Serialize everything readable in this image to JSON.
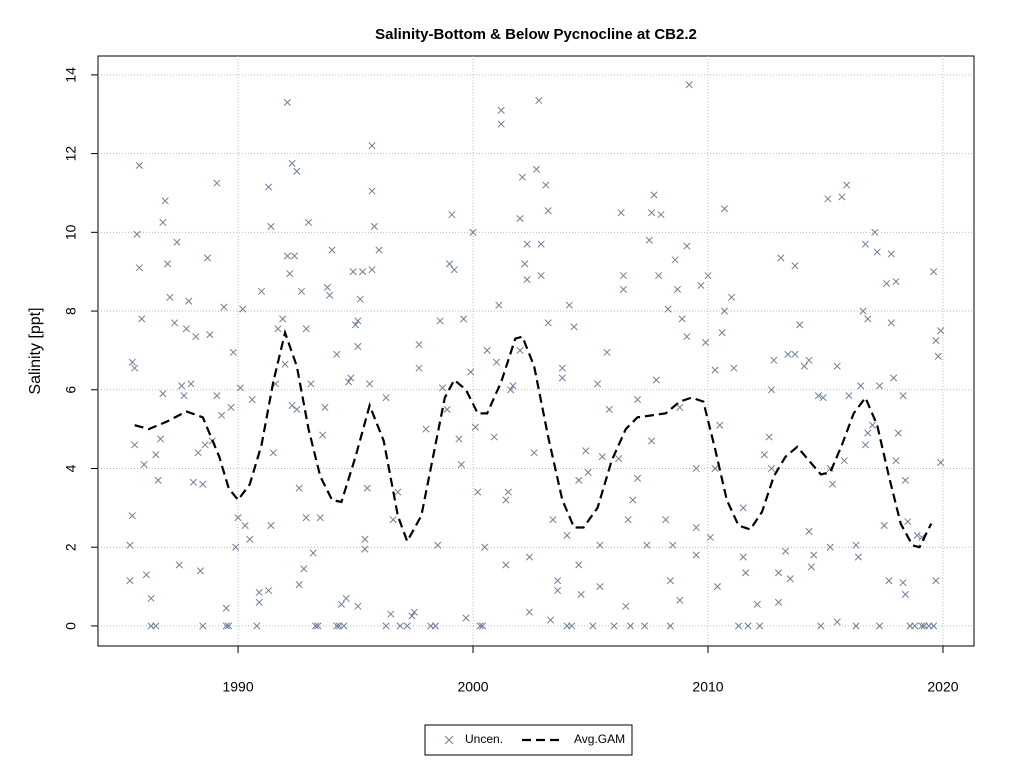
{
  "chart_data": {
    "type": "scatter",
    "title": "Salinity-Bottom & Below Pycnocline at CB2.2",
    "y_label": "Salinity [ppt]",
    "xlim": [
      1984.04,
      2021.32
    ],
    "xticks": [
      1990,
      2000,
      2010,
      2020
    ],
    "ylim": [
      -0.51,
      14.48
    ],
    "yticks": [
      0,
      2,
      4,
      6,
      8,
      10,
      12,
      14
    ],
    "grid": true,
    "legend_position": "bottom",
    "series": [
      {
        "name": "Uncen.",
        "color": "#6e7f99",
        "marker": "x",
        "x": [
          1985.4,
          1985.4,
          1985.5,
          1985.5,
          1985.6,
          1985.6,
          1985.7,
          1985.8,
          1985.8,
          1985.9,
          1986.0,
          1986.1,
          1986.3,
          1986.3,
          1986.5,
          1986.5,
          1986.6,
          1986.7,
          1986.8,
          1986.8,
          1986.9,
          1987.0,
          1987.1,
          1987.3,
          1987.4,
          1987.5,
          1987.6,
          1987.7,
          1987.8,
          1987.9,
          1988.0,
          1988.1,
          1988.2,
          1988.3,
          1988.4,
          1988.5,
          1988.5,
          1988.6,
          1988.7,
          1988.8,
          1988.9,
          1989.1,
          1989.1,
          1989.3,
          1989.4,
          1989.5,
          1989.5,
          1989.6,
          1989.7,
          1989.8,
          1989.9,
          1990.0,
          1990.1,
          1990.2,
          1990.3,
          1990.5,
          1990.6,
          1990.8,
          1990.9,
          1990.9,
          1991.0,
          1991.3,
          1991.3,
          1991.4,
          1991.4,
          1991.5,
          1991.6,
          1991.7,
          1991.9,
          1992.0,
          1992.1,
          1992.1,
          1992.2,
          1992.3,
          1992.3,
          1992.4,
          1992.5,
          1992.5,
          1992.6,
          1992.6,
          1992.7,
          1992.8,
          1992.9,
          1992.9,
          1993.0,
          1993.1,
          1993.2,
          1993.3,
          1993.4,
          1993.5,
          1993.6,
          1993.7,
          1993.8,
          1993.9,
          1994.0,
          1994.2,
          1994.2,
          1994.3,
          1994.4,
          1994.5,
          1994.6,
          1994.7,
          1994.8,
          1994.9,
          1995.0,
          1995.1,
          1995.1,
          1995.1,
          1995.2,
          1995.3,
          1995.4,
          1995.4,
          1995.5,
          1995.6,
          1995.7,
          1995.7,
          1995.7,
          1995.8,
          1996.0,
          1996.3,
          1996.3,
          1996.5,
          1996.6,
          1996.8,
          1996.9,
          1997.2,
          1997.4,
          1997.5,
          1997.7,
          1997.7,
          1998.0,
          1998.2,
          1998.4,
          1998.5,
          1998.6,
          1998.7,
          1998.9,
          1999.0,
          1999.1,
          1999.2,
          1999.4,
          1999.5,
          1999.6,
          1999.7,
          1999.9,
          2000.0,
          2000.1,
          2000.2,
          2000.3,
          2000.4,
          2000.5,
          2000.6,
          2000.9,
          2001.0,
          2001.1,
          2001.2,
          2001.2,
          2001.4,
          2001.4,
          2001.5,
          2001.6,
          2001.7,
          2002.0,
          2002.0,
          2002.1,
          2002.2,
          2002.3,
          2002.3,
          2002.4,
          2002.4,
          2002.6,
          2002.7,
          2002.8,
          2002.9,
          2002.9,
          2003.1,
          2003.2,
          2003.2,
          2003.3,
          2003.4,
          2003.6,
          2003.6,
          2003.8,
          2003.8,
          2004.0,
          2004.0,
          2004.1,
          2004.2,
          2004.3,
          2004.5,
          2004.5,
          2004.6,
          2004.8,
          2004.9,
          2005.1,
          2005.3,
          2005.4,
          2005.4,
          2005.5,
          2005.7,
          2005.8,
          2006.0,
          2006.2,
          2006.3,
          2006.4,
          2006.4,
          2006.5,
          2006.6,
          2006.7,
          2006.8,
          2007.0,
          2007.0,
          2007.3,
          2007.4,
          2007.5,
          2007.6,
          2007.6,
          2007.7,
          2007.8,
          2007.9,
          2008.0,
          2008.2,
          2008.3,
          2008.4,
          2008.4,
          2008.5,
          2008.6,
          2008.7,
          2008.8,
          2008.8,
          2008.9,
          2009.1,
          2009.1,
          2009.2,
          2009.5,
          2009.5,
          2009.5,
          2009.7,
          2009.9,
          2010.0,
          2010.1,
          2010.3,
          2010.3,
          2010.4,
          2010.5,
          2010.6,
          2010.7,
          2010.7,
          2011.0,
          2011.1,
          2011.3,
          2011.5,
          2011.5,
          2011.6,
          2011.7,
          2012.1,
          2012.2,
          2012.4,
          2012.6,
          2012.7,
          2012.7,
          2012.8,
          2013.0,
          2013.0,
          2013.1,
          2013.3,
          2013.4,
          2013.5,
          2013.7,
          2013.7,
          2013.9,
          2014.1,
          2014.3,
          2014.3,
          2014.4,
          2014.5,
          2014.7,
          2014.8,
          2014.9,
          2015.1,
          2015.2,
          2015.2,
          2015.3,
          2015.5,
          2015.5,
          2015.7,
          2015.8,
          2015.9,
          2016.0,
          2016.3,
          2016.3,
          2016.4,
          2016.5,
          2016.6,
          2016.7,
          2016.7,
          2016.8,
          2016.8,
          2017.0,
          2017.1,
          2017.2,
          2017.3,
          2017.3,
          2017.5,
          2017.6,
          2017.7,
          2017.8,
          2017.8,
          2017.9,
          2018.0,
          2018.0,
          2018.1,
          2018.3,
          2018.3,
          2018.4,
          2018.4,
          2018.5,
          2018.6,
          2018.8,
          2018.9,
          2019.1,
          2019.1,
          2019.2,
          2019.4,
          2019.6,
          2019.6,
          2019.7,
          2019.7,
          2019.8,
          2019.9,
          2019.9
        ],
        "values": [
          1.15,
          2.05,
          2.8,
          6.7,
          6.55,
          4.6,
          9.95,
          11.7,
          9.1,
          7.8,
          4.1,
          1.3,
          0.7,
          0,
          0,
          4.35,
          3.7,
          4.75,
          5.9,
          10.25,
          10.8,
          9.2,
          8.35,
          7.7,
          9.75,
          1.55,
          6.1,
          5.85,
          7.55,
          8.25,
          6.15,
          3.65,
          7.35,
          4.4,
          1.4,
          0,
          3.6,
          4.6,
          9.35,
          7.4,
          4.7,
          11.25,
          5.85,
          5.35,
          8.1,
          0.45,
          0,
          0,
          5.55,
          6.95,
          2.0,
          2.75,
          6.05,
          8.05,
          2.55,
          2.2,
          5.75,
          0,
          0.6,
          0.85,
          8.5,
          0.9,
          11.15,
          2.55,
          10.15,
          4.4,
          6.15,
          7.55,
          7.8,
          6.65,
          13.3,
          9.4,
          8.95,
          5.6,
          11.75,
          9.4,
          11.55,
          5.5,
          3.5,
          1.05,
          8.5,
          1.45,
          2.75,
          7.55,
          10.25,
          6.15,
          1.85,
          0,
          0,
          2.75,
          4.85,
          5.55,
          8.6,
          8.4,
          9.55,
          6.9,
          0,
          0,
          0.55,
          0,
          0.7,
          6.2,
          6.3,
          9.0,
          7.65,
          7.75,
          7.1,
          0.5,
          8.3,
          9.0,
          1.95,
          2.2,
          3.5,
          6.15,
          9.05,
          12.2,
          11.05,
          10.15,
          9.55,
          5.8,
          0,
          0.3,
          2.7,
          3.4,
          0,
          0,
          0.25,
          0.35,
          6.55,
          7.15,
          5.0,
          0,
          0,
          2.05,
          7.75,
          6.05,
          5.5,
          9.2,
          10.45,
          9.05,
          4.75,
          4.1,
          7.8,
          0.2,
          6.45,
          10.0,
          5.05,
          3.4,
          0,
          0,
          2.0,
          7.0,
          4.8,
          6.7,
          8.15,
          12.75,
          13.1,
          1.55,
          3.2,
          3.4,
          6.0,
          6.1,
          7.0,
          10.35,
          11.4,
          9.2,
          8.8,
          9.7,
          1.75,
          0.35,
          4.4,
          11.6,
          13.35,
          8.9,
          9.7,
          11.2,
          10.55,
          7.7,
          0.15,
          2.7,
          0.9,
          1.15,
          6.55,
          6.3,
          2.3,
          0,
          8.15,
          0,
          7.6,
          1.55,
          3.7,
          0.8,
          4.45,
          3.9,
          0,
          6.15,
          1.0,
          2.05,
          4.3,
          6.95,
          5.5,
          0,
          4.25,
          10.5,
          8.9,
          8.55,
          0.5,
          2.7,
          0,
          3.2,
          3.75,
          5.75,
          0,
          2.05,
          9.8,
          10.5,
          4.7,
          10.95,
          6.25,
          8.9,
          10.45,
          2.7,
          8.05,
          0,
          1.15,
          2.05,
          9.3,
          8.55,
          5.55,
          0.65,
          7.8,
          7.35,
          9.65,
          13.75,
          1.8,
          2.5,
          4.0,
          8.65,
          7.2,
          8.9,
          2.25,
          6.5,
          4.0,
          1.0,
          5.1,
          7.45,
          8.0,
          10.6,
          8.35,
          6.55,
          0,
          1.75,
          3.0,
          1.35,
          0,
          0.55,
          0,
          4.35,
          4.8,
          4.0,
          6.0,
          6.75,
          1.35,
          0.6,
          9.35,
          1.9,
          6.9,
          1.2,
          6.9,
          9.15,
          7.65,
          6.6,
          6.75,
          2.4,
          1.5,
          1.8,
          5.85,
          0,
          5.8,
          10.85,
          2.0,
          4.0,
          3.6,
          0.1,
          6.6,
          10.9,
          4.2,
          11.2,
          5.85,
          0,
          2.05,
          1.75,
          6.1,
          8.0,
          9.7,
          4.6,
          7.8,
          4.9,
          5.1,
          10.0,
          9.5,
          6.1,
          0,
          2.55,
          8.7,
          1.15,
          9.45,
          7.7,
          6.3,
          4.2,
          8.75,
          4.9,
          5.85,
          1.1,
          0.8,
          3.7,
          2.65,
          0,
          0,
          2.3,
          0,
          2.25,
          0,
          0,
          0,
          9.0,
          1.15,
          7.25,
          6.85,
          7.5,
          4.15
        ]
      },
      {
        "name": "Avg.GAM",
        "color": "#000000",
        "line": "dashed",
        "x": [
          1985.6,
          1986.2,
          1987,
          1987.8,
          1988.5,
          1989.2,
          1989.6,
          1990,
          1990.5,
          1991,
          1991.5,
          1992,
          1992.5,
          1993,
          1993.5,
          1994,
          1994.4,
          1995,
          1995.6,
          1996.2,
          1996.8,
          1997.2,
          1997.8,
          1998.3,
          1998.8,
          1999.2,
          1999.7,
          2000.2,
          2000.6,
          2001.2,
          2001.8,
          2002.1,
          2002.6,
          2003.2,
          2003.8,
          2004.3,
          2004.7,
          2005.3,
          2005.9,
          2006.5,
          2007,
          2007.6,
          2008.2,
          2008.8,
          2009.3,
          2009.8,
          2010.3,
          2010.8,
          2011.3,
          2011.8,
          2012.3,
          2012.8,
          2013.3,
          2013.8,
          2014.3,
          2014.8,
          2015.2,
          2015.7,
          2016.2,
          2016.7,
          2017.2,
          2017.7,
          2018.2,
          2018.7,
          2019,
          2019.5
        ],
        "values": [
          5.1,
          5.0,
          5.2,
          5.45,
          5.3,
          4.3,
          3.5,
          3.2,
          3.6,
          4.6,
          6.2,
          7.45,
          6.6,
          5.0,
          3.8,
          3.2,
          3.15,
          4.3,
          5.6,
          4.7,
          2.8,
          2.15,
          2.8,
          4.3,
          5.8,
          6.25,
          6.0,
          5.4,
          5.4,
          6.2,
          7.3,
          7.35,
          6.6,
          4.8,
          3.2,
          2.5,
          2.5,
          3.0,
          4.2,
          5.0,
          5.3,
          5.35,
          5.4,
          5.7,
          5.8,
          5.7,
          4.5,
          3.2,
          2.55,
          2.45,
          2.9,
          3.8,
          4.3,
          4.55,
          4.2,
          3.85,
          3.9,
          4.6,
          5.4,
          5.8,
          5.1,
          3.8,
          2.6,
          2.05,
          2.0,
          2.6
        ]
      }
    ]
  }
}
